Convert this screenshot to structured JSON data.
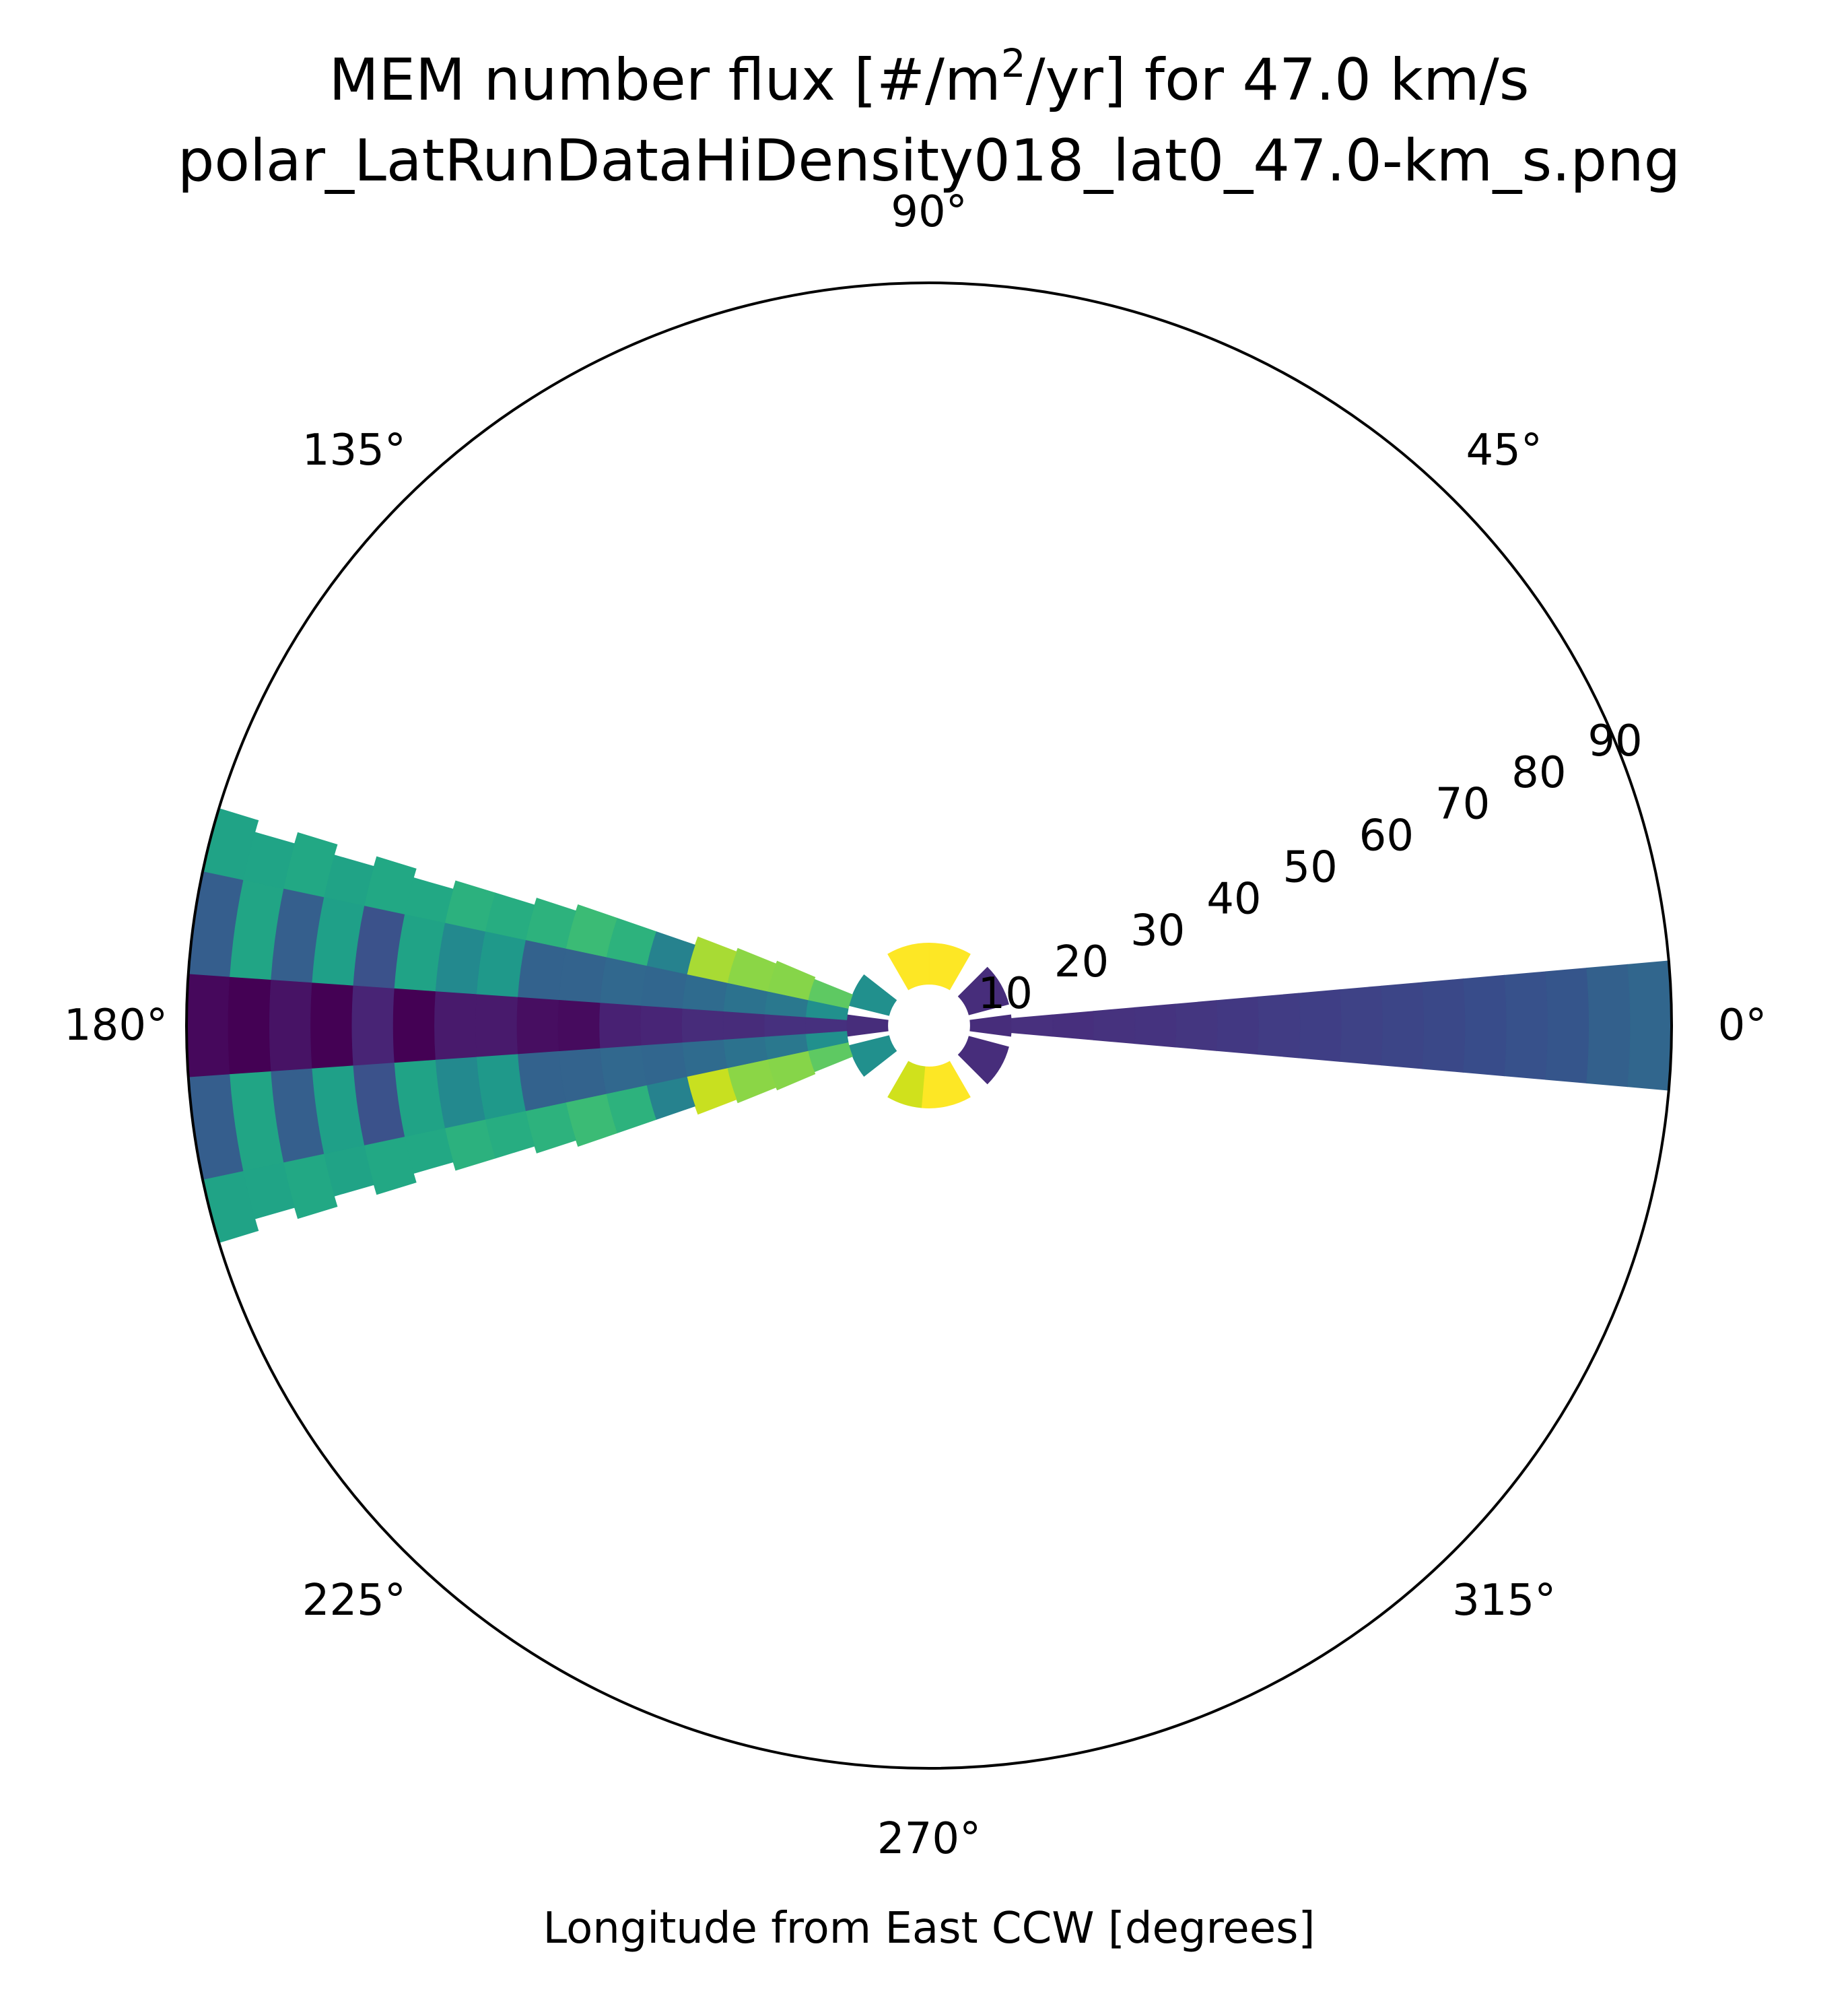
{
  "chart_data": {
    "type": "polar-heatmap",
    "title_prefix": "MEM number flux [#/m",
    "title_superscript": "2",
    "title_suffix": "/yr] for 47.0 km/s",
    "subtitle": "polar_LatRunDataHiDensity018_lat0_47.0-km_s.png",
    "xlabel": "Longitude from East CCW [degrees]",
    "angle_tick_labels": [
      {
        "angle": 0,
        "label": "0°"
      },
      {
        "angle": 45,
        "label": "45°"
      },
      {
        "angle": 90,
        "label": "90°"
      },
      {
        "angle": 135,
        "label": "135°"
      },
      {
        "angle": 180,
        "label": "180°"
      },
      {
        "angle": 225,
        "label": "225°"
      },
      {
        "angle": 270,
        "label": "270°"
      },
      {
        "angle": 315,
        "label": "315°"
      }
    ],
    "radial_tick_labels": [
      {
        "r": 10,
        "label": "10"
      },
      {
        "r": 20,
        "label": "20"
      },
      {
        "r": 30,
        "label": "30"
      },
      {
        "r": 40,
        "label": "40"
      },
      {
        "r": 50,
        "label": "50"
      },
      {
        "r": 60,
        "label": "60"
      },
      {
        "r": 70,
        "label": "70"
      },
      {
        "r": 80,
        "label": "80"
      },
      {
        "r": 90,
        "label": "90"
      }
    ],
    "r_range": [
      0,
      90
    ],
    "radial_label_angle": 22.5,
    "grid": false,
    "colormap": "viridis",
    "axis_color": "#000000",
    "wedges": [
      {
        "theta": [
          -7.5,
          7.5
        ],
        "r": [
          5,
          10
        ],
        "color": "#472d7b"
      },
      {
        "theta": [
          172.5,
          187.5
        ],
        "r": [
          5,
          10
        ],
        "color": "#472d7b"
      },
      {
        "theta": [
          15,
          45
        ],
        "r": [
          5,
          10
        ],
        "color": "#472d7b"
      },
      {
        "theta": [
          -45,
          -15
        ],
        "r": [
          5,
          10
        ],
        "color": "#472d7b"
      },
      {
        "theta": [
          60,
          90
        ],
        "r": [
          5,
          10
        ],
        "color": "#fde725"
      },
      {
        "theta": [
          90,
          120
        ],
        "r": [
          5,
          10
        ],
        "color": "#fde725"
      },
      {
        "theta": [
          240,
          265
        ],
        "r": [
          5,
          10
        ],
        "color": "#d0e11c"
      },
      {
        "theta": [
          265,
          300
        ],
        "r": [
          5,
          10
        ],
        "color": "#fde725"
      },
      {
        "theta": [
          142,
          166
        ],
        "r": [
          5,
          10
        ],
        "color": "#21908d"
      },
      {
        "theta": [
          194,
          218
        ],
        "r": [
          5,
          10
        ],
        "color": "#21908d"
      },
      {
        "theta": [
          -5,
          5
        ],
        "r": [
          10,
          15
        ],
        "color": "#48307e"
      },
      {
        "theta": [
          -5,
          5
        ],
        "r": [
          15,
          20
        ],
        "color": "#472f7d"
      },
      {
        "theta": [
          -5,
          5
        ],
        "r": [
          20,
          25
        ],
        "color": "#46327e"
      },
      {
        "theta": [
          -5,
          5
        ],
        "r": [
          25,
          30
        ],
        "color": "#45337f"
      },
      {
        "theta": [
          -5,
          5
        ],
        "r": [
          30,
          35
        ],
        "color": "#443680"
      },
      {
        "theta": [
          -5,
          5
        ],
        "r": [
          35,
          40
        ],
        "color": "#423882"
      },
      {
        "theta": [
          -5,
          5
        ],
        "r": [
          40,
          45
        ],
        "color": "#413c84"
      },
      {
        "theta": [
          -5,
          5
        ],
        "r": [
          45,
          50
        ],
        "color": "#3f3e85"
      },
      {
        "theta": [
          -5,
          5
        ],
        "r": [
          50,
          55
        ],
        "color": "#3e4286"
      },
      {
        "theta": [
          -5,
          5
        ],
        "r": [
          55,
          60
        ],
        "color": "#3c4587"
      },
      {
        "theta": [
          -5,
          5
        ],
        "r": [
          60,
          65
        ],
        "color": "#3a4888"
      },
      {
        "theta": [
          -5,
          5
        ],
        "r": [
          65,
          70
        ],
        "color": "#384c8a"
      },
      {
        "theta": [
          -5,
          5
        ],
        "r": [
          70,
          75
        ],
        "color": "#37518b"
      },
      {
        "theta": [
          -5,
          5
        ],
        "r": [
          75,
          80
        ],
        "color": "#35558b"
      },
      {
        "theta": [
          -5,
          5
        ],
        "r": [
          80,
          85
        ],
        "color": "#33608c"
      },
      {
        "theta": [
          -5,
          5
        ],
        "r": [
          85,
          90
        ],
        "color": "#31668d"
      },
      {
        "theta": [
          176,
          184
        ],
        "r": [
          10,
          15
        ],
        "color": "#46307e"
      },
      {
        "theta": [
          176,
          184
        ],
        "r": [
          15,
          20
        ],
        "color": "#46307e"
      },
      {
        "theta": [
          176,
          184
        ],
        "r": [
          20,
          25
        ],
        "color": "#472c7a"
      },
      {
        "theta": [
          176,
          184
        ],
        "r": [
          25,
          30
        ],
        "color": "#472c7a"
      },
      {
        "theta": [
          176,
          184
        ],
        "r": [
          30,
          35
        ],
        "color": "#482576"
      },
      {
        "theta": [
          176,
          184
        ],
        "r": [
          35,
          40
        ],
        "color": "#482173"
      },
      {
        "theta": [
          176,
          184
        ],
        "r": [
          40,
          45
        ],
        "color": "#460b5e"
      },
      {
        "theta": [
          176,
          184
        ],
        "r": [
          45,
          50
        ],
        "color": "#470e61"
      },
      {
        "theta": [
          176,
          184
        ],
        "r": [
          50,
          55
        ],
        "color": "#481a6c"
      },
      {
        "theta": [
          176,
          184
        ],
        "r": [
          55,
          60
        ],
        "color": "#481a6c"
      },
      {
        "theta": [
          176,
          184
        ],
        "r": [
          60,
          65
        ],
        "color": "#440154"
      },
      {
        "theta": [
          176,
          184
        ],
        "r": [
          65,
          70
        ],
        "color": "#482475"
      },
      {
        "theta": [
          176,
          184
        ],
        "r": [
          70,
          75
        ],
        "color": "#440154"
      },
      {
        "theta": [
          176,
          184
        ],
        "r": [
          75,
          80
        ],
        "color": "#471365"
      },
      {
        "theta": [
          176,
          184
        ],
        "r": [
          80,
          85
        ],
        "color": "#440154"
      },
      {
        "theta": [
          176,
          184
        ],
        "r": [
          85,
          90
        ],
        "color": "#46085c"
      },
      {
        "theta": [
          168,
          176
        ],
        "r": [
          10,
          15
        ],
        "color": "#21908d"
      },
      {
        "theta": [
          168,
          176
        ],
        "r": [
          15,
          20
        ],
        "color": "#2a788e"
      },
      {
        "theta": [
          168,
          176
        ],
        "r": [
          20,
          25
        ],
        "color": "#2c728e"
      },
      {
        "theta": [
          168,
          176
        ],
        "r": [
          25,
          30
        ],
        "color": "#2f6b8e"
      },
      {
        "theta": [
          168,
          176
        ],
        "r": [
          30,
          35
        ],
        "color": "#31668e"
      },
      {
        "theta": [
          168,
          176
        ],
        "r": [
          35,
          40
        ],
        "color": "#31688e"
      },
      {
        "theta": [
          168,
          176
        ],
        "r": [
          40,
          45
        ],
        "color": "#33638d"
      },
      {
        "theta": [
          168,
          176
        ],
        "r": [
          45,
          50
        ],
        "color": "#33628d"
      },
      {
        "theta": [
          168,
          176
        ],
        "r": [
          50,
          55
        ],
        "color": "#1f998a"
      },
      {
        "theta": [
          168,
          176
        ],
        "r": [
          55,
          60
        ],
        "color": "#23898e"
      },
      {
        "theta": [
          168,
          176
        ],
        "r": [
          60,
          65
        ],
        "color": "#20a386"
      },
      {
        "theta": [
          168,
          176
        ],
        "r": [
          65,
          70
        ],
        "color": "#3b528b"
      },
      {
        "theta": [
          168,
          176
        ],
        "r": [
          70,
          75
        ],
        "color": "#1fa088"
      },
      {
        "theta": [
          168,
          176
        ],
        "r": [
          75,
          80
        ],
        "color": "#355f8d"
      },
      {
        "theta": [
          168,
          176
        ],
        "r": [
          80,
          85
        ],
        "color": "#21a585"
      },
      {
        "theta": [
          168,
          176
        ],
        "r": [
          85,
          90
        ],
        "color": "#355e8d"
      },
      {
        "theta": [
          184,
          192
        ],
        "r": [
          10,
          15
        ],
        "color": "#21908d"
      },
      {
        "theta": [
          184,
          192
        ],
        "r": [
          15,
          20
        ],
        "color": "#2a788e"
      },
      {
        "theta": [
          184,
          192
        ],
        "r": [
          20,
          25
        ],
        "color": "#2c728e"
      },
      {
        "theta": [
          184,
          192
        ],
        "r": [
          25,
          30
        ],
        "color": "#2f6b8e"
      },
      {
        "theta": [
          184,
          192
        ],
        "r": [
          30,
          35
        ],
        "color": "#31668e"
      },
      {
        "theta": [
          184,
          192
        ],
        "r": [
          35,
          40
        ],
        "color": "#31688e"
      },
      {
        "theta": [
          184,
          192
        ],
        "r": [
          40,
          45
        ],
        "color": "#33638d"
      },
      {
        "theta": [
          184,
          192
        ],
        "r": [
          45,
          50
        ],
        "color": "#33628d"
      },
      {
        "theta": [
          184,
          192
        ],
        "r": [
          50,
          55
        ],
        "color": "#1f998a"
      },
      {
        "theta": [
          184,
          192
        ],
        "r": [
          55,
          60
        ],
        "color": "#23898e"
      },
      {
        "theta": [
          184,
          192
        ],
        "r": [
          60,
          65
        ],
        "color": "#20a386"
      },
      {
        "theta": [
          184,
          192
        ],
        "r": [
          65,
          70
        ],
        "color": "#3b528b"
      },
      {
        "theta": [
          184,
          192
        ],
        "r": [
          70,
          75
        ],
        "color": "#1fa088"
      },
      {
        "theta": [
          184,
          192
        ],
        "r": [
          75,
          80
        ],
        "color": "#355f8d"
      },
      {
        "theta": [
          184,
          192
        ],
        "r": [
          80,
          85
        ],
        "color": "#21a585"
      },
      {
        "theta": [
          184,
          192
        ],
        "r": [
          85,
          90
        ],
        "color": "#355e8d"
      },
      {
        "theta": [
          158,
          168
        ],
        "r": [
          10,
          15
        ],
        "color": "#5ec962"
      },
      {
        "theta": [
          157,
          168
        ],
        "r": [
          15,
          20
        ],
        "color": "#86d549"
      },
      {
        "theta": [
          158,
          168
        ],
        "r": [
          20,
          25
        ],
        "color": "#8bd646"
      },
      {
        "theta": [
          159,
          168
        ],
        "r": [
          25,
          30
        ],
        "color": "#a8db34"
      },
      {
        "theta": [
          161,
          168
        ],
        "r": [
          30,
          35
        ],
        "color": "#26828e"
      },
      {
        "theta": [
          161,
          168
        ],
        "r": [
          35,
          40
        ],
        "color": "#2db27d"
      },
      {
        "theta": [
          161,
          168
        ],
        "r": [
          40,
          45
        ],
        "color": "#3bbb75"
      },
      {
        "theta": [
          162,
          168
        ],
        "r": [
          45,
          50
        ],
        "color": "#2db27d"
      },
      {
        "theta": [
          163,
          168
        ],
        "r": [
          50,
          55
        ],
        "color": "#27ad81"
      },
      {
        "theta": [
          163,
          168
        ],
        "r": [
          55,
          60
        ],
        "color": "#2cb17e"
      },
      {
        "theta": [
          164,
          168
        ],
        "r": [
          60,
          65
        ],
        "color": "#22a884"
      },
      {
        "theta": [
          163,
          168
        ],
        "r": [
          65,
          70
        ],
        "color": "#22a884"
      },
      {
        "theta": [
          164,
          168
        ],
        "r": [
          70,
          75
        ],
        "color": "#20a386"
      },
      {
        "theta": [
          163,
          168
        ],
        "r": [
          75,
          80
        ],
        "color": "#22a884"
      },
      {
        "theta": [
          164,
          168
        ],
        "r": [
          80,
          85
        ],
        "color": "#20a486"
      },
      {
        "theta": [
          163,
          168
        ],
        "r": [
          85,
          90
        ],
        "color": "#20a386"
      },
      {
        "theta": [
          192,
          202
        ],
        "r": [
          10,
          15
        ],
        "color": "#5ec962"
      },
      {
        "theta": [
          192,
          203
        ],
        "r": [
          15,
          20
        ],
        "color": "#86d549"
      },
      {
        "theta": [
          192,
          202
        ],
        "r": [
          20,
          25
        ],
        "color": "#8bd646"
      },
      {
        "theta": [
          192,
          201
        ],
        "r": [
          25,
          30
        ],
        "color": "#c8e020"
      },
      {
        "theta": [
          192,
          199
        ],
        "r": [
          30,
          35
        ],
        "color": "#26828e"
      },
      {
        "theta": [
          192,
          199
        ],
        "r": [
          35,
          40
        ],
        "color": "#2db27d"
      },
      {
        "theta": [
          192,
          199
        ],
        "r": [
          40,
          45
        ],
        "color": "#3bbb75"
      },
      {
        "theta": [
          192,
          198
        ],
        "r": [
          45,
          50
        ],
        "color": "#2db27d"
      },
      {
        "theta": [
          192,
          197
        ],
        "r": [
          50,
          55
        ],
        "color": "#27ad81"
      },
      {
        "theta": [
          192,
          197
        ],
        "r": [
          55,
          60
        ],
        "color": "#2cb17e"
      },
      {
        "theta": [
          192,
          196
        ],
        "r": [
          60,
          65
        ],
        "color": "#22a884"
      },
      {
        "theta": [
          192,
          197
        ],
        "r": [
          65,
          70
        ],
        "color": "#22a884"
      },
      {
        "theta": [
          192,
          196
        ],
        "r": [
          70,
          75
        ],
        "color": "#20a386"
      },
      {
        "theta": [
          192,
          197
        ],
        "r": [
          75,
          80
        ],
        "color": "#22a884"
      },
      {
        "theta": [
          192,
          196
        ],
        "r": [
          80,
          85
        ],
        "color": "#20a486"
      },
      {
        "theta": [
          192,
          197
        ],
        "r": [
          85,
          90
        ],
        "color": "#20a386"
      }
    ]
  }
}
